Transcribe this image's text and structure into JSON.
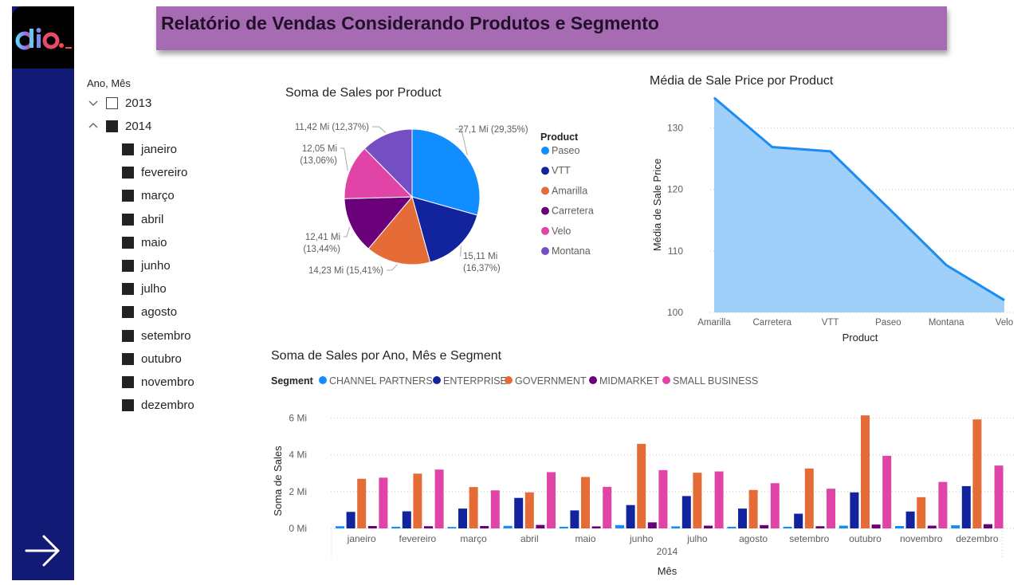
{
  "report": {
    "title": "Relatório de Vendas Considerando Produtos e Segmento"
  },
  "nav": {
    "logo_text": "dio.",
    "next_icon": "arrow-right-icon"
  },
  "colors": {
    "rail": "#111a75",
    "banner": "#a66bb3",
    "accent_area": "#1a8cf2"
  },
  "slicer": {
    "header": "Ano, Mês",
    "years": [
      {
        "label": "2013",
        "checked": false,
        "expanded": false
      },
      {
        "label": "2014",
        "checked": true,
        "expanded": true
      }
    ],
    "months": [
      "janeiro",
      "fevereiro",
      "março",
      "abril",
      "maio",
      "junho",
      "julho",
      "agosto",
      "setembro",
      "outubro",
      "novembro",
      "dezembro"
    ]
  },
  "pie": {
    "title": "Soma de Sales por Product",
    "legend_title": "Product"
  },
  "area": {
    "title": "Média de Sale Price por Product"
  },
  "bars": {
    "title": "Soma de Sales por Ano, Mês e Segment",
    "legend_title": "Segment",
    "year_label": "2014"
  },
  "chart_data": [
    {
      "type": "pie",
      "title": "Soma de Sales por Product",
      "legend_title": "Product",
      "slices": [
        {
          "name": "Paseo",
          "value": 27.1,
          "label": "27,1 Mi (29,35%)",
          "color": "#118dff"
        },
        {
          "name": "VTT",
          "value": 15.11,
          "label": "15,11 Mi (16,37%)",
          "color": "#12239e"
        },
        {
          "name": "Amarilla",
          "value": 14.23,
          "label": "14,23 Mi (15,41%)",
          "color": "#e66c37"
        },
        {
          "name": "Carretera",
          "value": 12.41,
          "label": "12,41 Mi (13,44%)",
          "color": "#6b007b"
        },
        {
          "name": "Velo",
          "value": 12.05,
          "label": "12,05 Mi (13,06%)",
          "color": "#e044a7"
        },
        {
          "name": "Montana",
          "value": 11.42,
          "label": "11,42 Mi (12,37%)",
          "color": "#744ec2"
        }
      ]
    },
    {
      "type": "area",
      "title": "Média de Sale Price por Product",
      "xlabel": "Product",
      "ylabel": "Média de Sale Price",
      "categories": [
        "Amarilla",
        "Carretera",
        "VTT",
        "Paseo",
        "Montana",
        "Velo"
      ],
      "values": [
        134.9,
        126.9,
        126.2,
        117.0,
        107.7,
        102.0
      ],
      "ylim": [
        100,
        135
      ],
      "yticks": [
        100,
        110,
        120,
        130
      ],
      "grid": true
    },
    {
      "type": "bar",
      "title": "Soma de Sales por Ano, Mês e Segment",
      "xlabel": "Mês",
      "ylabel": "Soma de Sales",
      "x_group_label": "2014",
      "categories": [
        "janeiro",
        "fevereiro",
        "março",
        "abril",
        "maio",
        "junho",
        "julho",
        "agosto",
        "setembro",
        "outubro",
        "novembro",
        "dezembro"
      ],
      "ylim": [
        0,
        6.2
      ],
      "yticks": [
        {
          "v": 0,
          "label": "0 Mi"
        },
        {
          "v": 2,
          "label": "2 Mi"
        },
        {
          "v": 4,
          "label": "4 Mi"
        },
        {
          "v": 6,
          "label": "6 Mi"
        }
      ],
      "legend_position": "top-left",
      "series": [
        {
          "name": "CHANNEL PARTNERS",
          "color": "#118dff",
          "values": [
            0.12,
            0.09,
            0.08,
            0.14,
            0.09,
            0.18,
            0.11,
            0.09,
            0.09,
            0.15,
            0.13,
            0.17
          ]
        },
        {
          "name": "ENTERPRISE",
          "color": "#12239e",
          "values": [
            0.9,
            0.93,
            1.08,
            1.66,
            0.98,
            1.27,
            1.76,
            1.08,
            0.8,
            1.96,
            0.92,
            2.3
          ]
        },
        {
          "name": "GOVERNMENT",
          "color": "#e66c37",
          "values": [
            2.7,
            2.98,
            2.25,
            1.96,
            2.8,
            4.6,
            3.03,
            2.09,
            3.26,
            6.15,
            1.7,
            5.93
          ]
        },
        {
          "name": "MIDMARKET",
          "color": "#6b007b",
          "values": [
            0.13,
            0.12,
            0.13,
            0.19,
            0.11,
            0.33,
            0.15,
            0.18,
            0.12,
            0.21,
            0.15,
            0.23
          ]
        },
        {
          "name": "SMALL BUSINESS",
          "color": "#e044a7",
          "values": [
            2.76,
            3.2,
            2.07,
            3.06,
            2.26,
            3.17,
            3.1,
            2.46,
            2.16,
            3.95,
            2.53,
            3.42
          ]
        }
      ]
    }
  ]
}
